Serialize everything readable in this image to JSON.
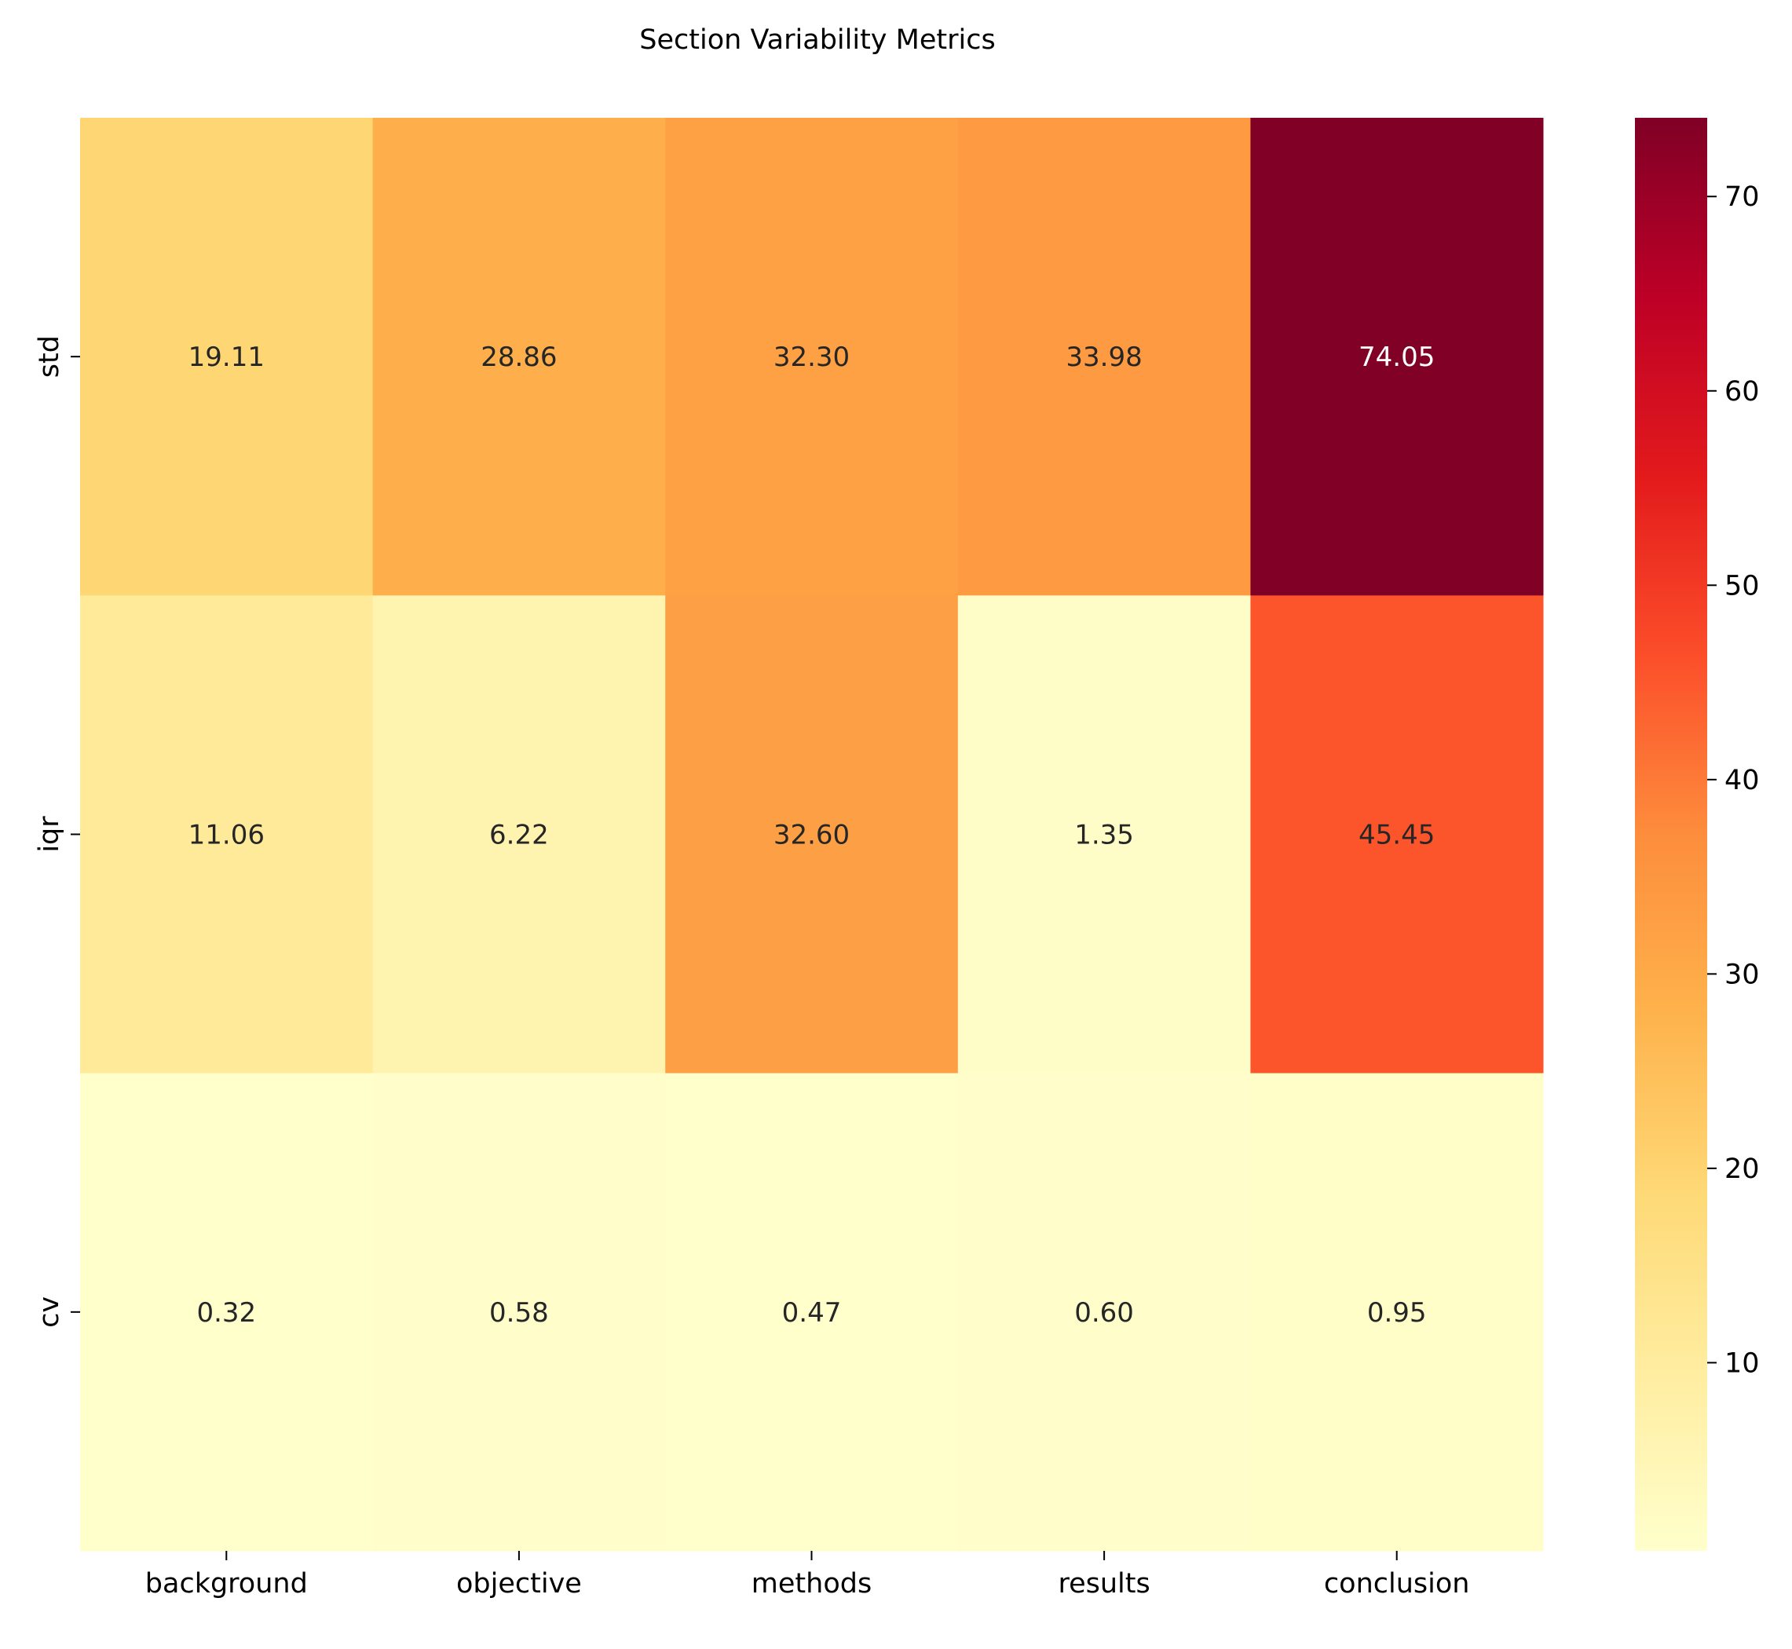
{
  "chart_data": {
    "type": "heatmap",
    "title": "Section Variability Metrics",
    "xlabel": "",
    "ylabel": "",
    "x_categories": [
      "background",
      "objective",
      "methods",
      "results",
      "conclusion"
    ],
    "y_categories": [
      "std",
      "iqr",
      "cv"
    ],
    "values": [
      [
        19.11,
        28.86,
        32.3,
        33.98,
        74.05
      ],
      [
        11.06,
        6.22,
        32.6,
        1.35,
        45.45
      ],
      [
        0.32,
        0.58,
        0.47,
        0.6,
        0.95
      ]
    ],
    "value_labels": [
      [
        "19.11",
        "28.86",
        "32.30",
        "33.98",
        "74.05"
      ],
      [
        "11.06",
        "6.22",
        "32.60",
        "1.35",
        "45.45"
      ],
      [
        "0.32",
        "0.58",
        "0.47",
        "0.60",
        "0.95"
      ]
    ],
    "colormap": "YlOrRd",
    "color_range": [
      0.32,
      74.05
    ],
    "colorbar_ticks": [
      10,
      20,
      30,
      40,
      50,
      60,
      70
    ],
    "colors": {
      "stops": [
        "#ffffcc",
        "#ffeda0",
        "#fed976",
        "#feb24c",
        "#fd8d3c",
        "#fc4e2a",
        "#e31a1c",
        "#bd0026",
        "#800026"
      ],
      "label_dark": "#262626",
      "label_light": "#ffffff"
    },
    "grid": false,
    "legend": "colorbar right"
  }
}
